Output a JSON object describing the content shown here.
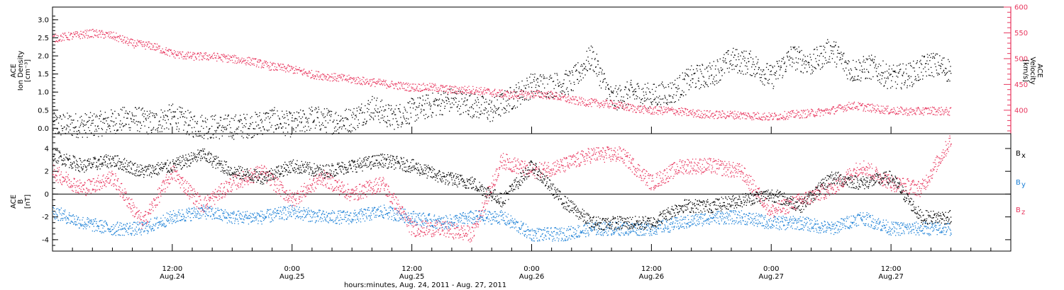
{
  "colors": {
    "black": "#000000",
    "pink": "#e8365e",
    "blue": "#1a7fd6",
    "axis": "#000000"
  },
  "chart_data": [
    {
      "type": "scatter",
      "panel": "top",
      "title": "",
      "ylabel_lines": [
        "ACE",
        "Ion Density",
        "[cm⁻³]"
      ],
      "ylabel_right_lines": [
        "ACE",
        "Velocity",
        "[km/s]"
      ],
      "ylim": [
        -0.15,
        3.35
      ],
      "ylim_right": [
        354.5,
        600
      ],
      "yticks": [
        0.0,
        0.5,
        1.0,
        1.5,
        2.0,
        2.5,
        3.0
      ],
      "yticks_right": [
        400,
        450,
        500,
        550,
        600
      ],
      "series": [
        {
          "name": "Ion Density",
          "axis": "left",
          "color_key": "black",
          "x_hours": [
            0,
            4,
            8,
            10,
            12,
            14,
            16,
            18,
            20,
            22,
            24,
            26,
            28,
            30,
            32,
            34,
            36,
            40,
            44,
            48,
            50,
            52,
            54,
            56,
            58,
            60,
            62,
            64,
            66,
            68,
            70,
            72,
            74,
            76,
            78,
            80,
            82,
            84,
            86,
            88,
            90
          ],
          "y": [
            0.1,
            0.1,
            0.3,
            0.15,
            0.35,
            0.1,
            0.05,
            0.05,
            0.1,
            0.25,
            0.1,
            0.3,
            0.2,
            0.25,
            0.6,
            0.3,
            0.5,
            0.8,
            0.5,
            1.2,
            1.2,
            1.3,
            2.0,
            0.8,
            1.0,
            0.9,
            1.0,
            1.4,
            1.5,
            1.9,
            1.8,
            1.4,
            2.0,
            1.8,
            2.2,
            1.6,
            1.7,
            1.4,
            1.5,
            1.8,
            1.6
          ]
        },
        {
          "name": "Velocity",
          "axis": "right",
          "color_key": "pink",
          "x_hours": [
            0,
            2,
            4,
            6,
            8,
            10,
            12,
            14,
            16,
            18,
            20,
            22,
            24,
            26,
            28,
            30,
            32,
            34,
            36,
            38,
            40,
            42,
            44,
            46,
            48,
            50,
            52,
            54,
            56,
            58,
            60,
            62,
            64,
            66,
            68,
            70,
            72,
            74,
            76,
            78,
            80,
            82,
            84,
            86,
            88,
            90
          ],
          "y": [
            540,
            545,
            550,
            545,
            530,
            525,
            510,
            505,
            505,
            500,
            495,
            485,
            480,
            470,
            465,
            460,
            455,
            450,
            445,
            445,
            440,
            440,
            435,
            430,
            432,
            430,
            420,
            415,
            412,
            405,
            400,
            400,
            395,
            392,
            392,
            390,
            388,
            392,
            395,
            400,
            410,
            405,
            400,
            398,
            400,
            398
          ]
        }
      ]
    },
    {
      "type": "scatter",
      "panel": "bottom",
      "title": "",
      "ylabel_lines": [
        "ACE",
        "B",
        "[nT]"
      ],
      "ylim": [
        -5.0,
        5.3
      ],
      "yticks": [
        -4,
        -2,
        0,
        2,
        4
      ],
      "xlabel": "hours:minutes, Aug. 24, 2011 - Aug. 27, 2011",
      "x_tick_hours": [
        12,
        24,
        36,
        48,
        60,
        72,
        84
      ],
      "x_tick_labels": [
        [
          "12:00",
          "Aug.24"
        ],
        [
          "0:00",
          "Aug.25"
        ],
        [
          "12:00",
          "Aug.25"
        ],
        [
          "0:00",
          "Aug.26"
        ],
        [
          "12:00",
          "Aug.26"
        ],
        [
          "0:00",
          "Aug.27"
        ],
        [
          "12:00",
          "Aug.27"
        ]
      ],
      "xlim_hours": [
        0,
        96
      ],
      "legend": [
        {
          "name": "B",
          "sub": "x",
          "color_key": "black"
        },
        {
          "name": "B",
          "sub": "y",
          "color_key": "blue"
        },
        {
          "name": "B",
          "sub": "z",
          "color_key": "pink"
        }
      ],
      "series": [
        {
          "name": "Bx",
          "color_key": "black",
          "x_hours": [
            0,
            3,
            6,
            9,
            12,
            15,
            18,
            21,
            24,
            27,
            30,
            33,
            36,
            39,
            42,
            45,
            48,
            51,
            54,
            57,
            60,
            63,
            66,
            69,
            72,
            75,
            78,
            81,
            84,
            87,
            90
          ],
          "y": [
            3.5,
            2.5,
            3.0,
            2.0,
            2.5,
            3.5,
            2.0,
            1.5,
            2.5,
            2.0,
            2.5,
            3.0,
            2.5,
            1.5,
            1.0,
            -0.5,
            2.5,
            -0.5,
            -2.5,
            -2.5,
            -2.5,
            -1.0,
            -1.0,
            -0.5,
            0.0,
            -1.0,
            1.5,
            1.0,
            1.5,
            -2.0,
            -2.0
          ]
        },
        {
          "name": "By",
          "color_key": "blue",
          "x_hours": [
            0,
            3,
            6,
            9,
            12,
            15,
            18,
            21,
            24,
            27,
            30,
            33,
            36,
            39,
            42,
            45,
            48,
            51,
            54,
            57,
            60,
            63,
            66,
            69,
            72,
            75,
            78,
            81,
            84,
            87,
            90
          ],
          "y": [
            -1.5,
            -2.5,
            -3.0,
            -3.0,
            -2.0,
            -1.5,
            -2.0,
            -2.0,
            -1.5,
            -2.0,
            -2.0,
            -1.5,
            -2.0,
            -2.5,
            -2.0,
            -2.0,
            -3.5,
            -3.5,
            -3.0,
            -3.0,
            -3.0,
            -2.5,
            -2.0,
            -2.0,
            -2.5,
            -2.5,
            -3.0,
            -2.0,
            -3.0,
            -3.0,
            -3.0
          ]
        },
        {
          "name": "Bz",
          "color_key": "pink",
          "x_hours": [
            0,
            3,
            6,
            9,
            12,
            15,
            18,
            21,
            24,
            27,
            30,
            33,
            36,
            39,
            42,
            45,
            48,
            51,
            54,
            57,
            60,
            63,
            66,
            69,
            72,
            75,
            78,
            81,
            84,
            87,
            90
          ],
          "y": [
            2.0,
            0.5,
            1.5,
            -2.5,
            2.0,
            -1.0,
            1.0,
            2.0,
            -0.5,
            1.5,
            0.0,
            1.0,
            -3.0,
            -3.0,
            -3.5,
            3.0,
            2.0,
            2.5,
            3.5,
            3.5,
            1.0,
            2.5,
            2.5,
            2.0,
            -1.5,
            -0.5,
            0.5,
            2.5,
            1.0,
            0.5,
            4.8
          ]
        }
      ]
    }
  ]
}
